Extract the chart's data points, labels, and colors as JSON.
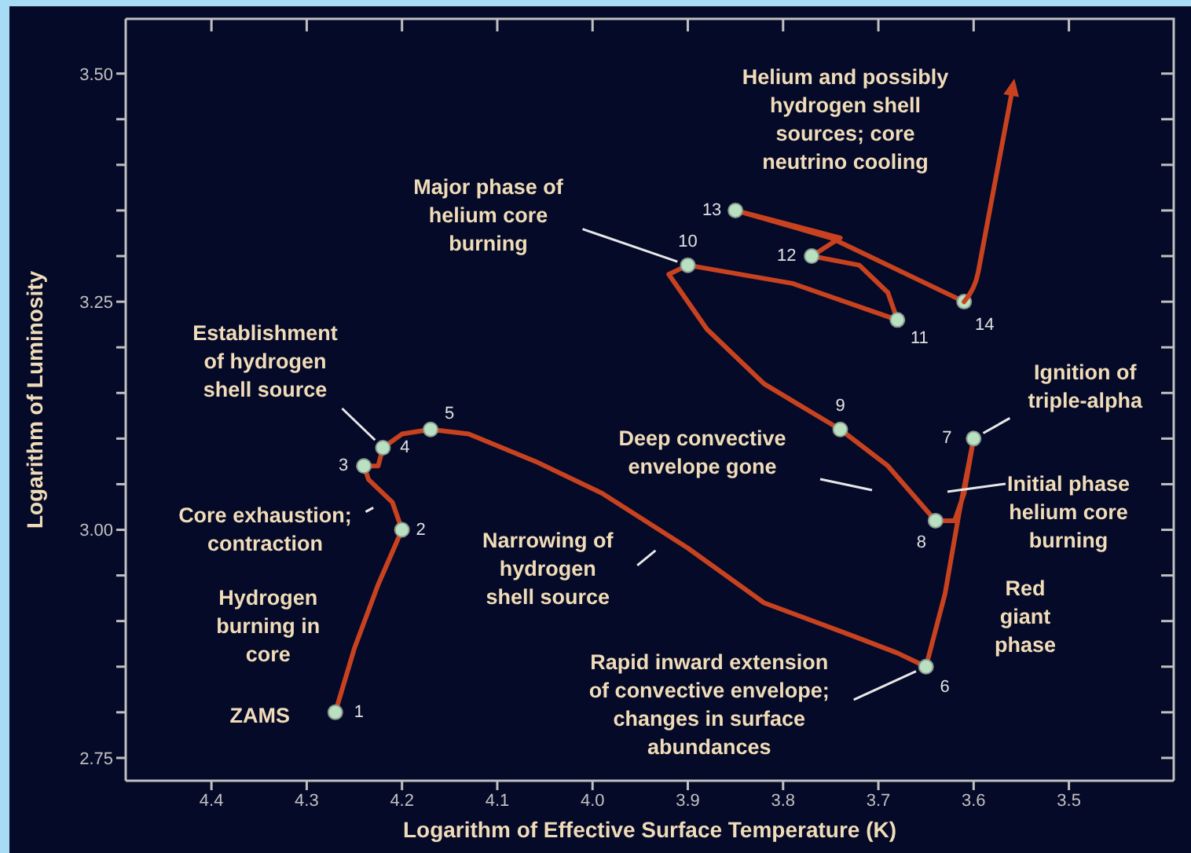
{
  "chart_data": {
    "type": "line",
    "xlabel": "Logarithm of Effective Surface Temperature (K)",
    "ylabel": "Logarithm of Luminosity",
    "xlim": [
      4.49,
      3.39
    ],
    "ylim": [
      2.725,
      3.56
    ],
    "xticks": [
      4.4,
      4.3,
      4.2,
      4.1,
      {
        "value": 4,
        "label": "4.0"
      },
      3.9,
      3.8,
      3.7,
      3.6,
      3.5
    ],
    "yticks": [
      {
        "value": 2.75,
        "label": "2.75"
      },
      {
        "value": 2.8,
        "label": null
      },
      {
        "value": 2.85,
        "label": null
      },
      {
        "value": 2.9,
        "label": null
      },
      {
        "value": 2.95,
        "label": null
      },
      {
        "value": 3,
        "label": "3.00"
      },
      {
        "value": 3.05,
        "label": null
      },
      {
        "value": 3.1,
        "label": null
      },
      {
        "value": 3.15,
        "label": null
      },
      {
        "value": 3.2,
        "label": null
      },
      {
        "value": 3.25,
        "label": "3.25"
      },
      {
        "value": 3.3,
        "label": null
      },
      {
        "value": 3.35,
        "label": null
      },
      {
        "value": 3.4,
        "label": null
      },
      {
        "value": 3.45,
        "label": null
      },
      {
        "value": 3.5,
        "label": "3.50"
      }
    ],
    "series": [
      {
        "color": "#c8421f",
        "x": [
          4.27,
          4.25,
          4.225,
          4.2,
          4.21,
          4.235,
          4.24,
          4.225,
          4.22,
          4.2,
          4.17,
          4.13,
          4.06,
          3.99,
          3.9,
          3.82,
          3.73,
          3.68,
          3.65,
          3.63,
          3.615,
          3.6,
          3.61,
          3.62,
          3.64,
          3.69,
          3.74,
          3.82,
          3.88,
          3.92,
          3.9,
          3.79,
          3.68,
          3.69,
          3.72,
          3.77,
          3.74,
          3.85,
          3.75,
          3.61
        ],
        "values": [
          2.8,
          2.87,
          2.94,
          3.0,
          3.03,
          3.055,
          3.07,
          3.07,
          3.09,
          3.105,
          3.11,
          3.105,
          3.075,
          3.04,
          2.98,
          2.92,
          2.885,
          2.865,
          2.85,
          2.93,
          3.02,
          3.1,
          3.04,
          3.01,
          3.01,
          3.07,
          3.11,
          3.16,
          3.22,
          3.28,
          3.29,
          3.27,
          3.23,
          3.26,
          3.29,
          3.3,
          3.32,
          3.35,
          3.32,
          3.25
        ]
      },
      {
        "type": "scatter",
        "color": "#b9e0c0",
        "x": [
          4.27,
          4.2,
          4.24,
          4.22,
          4.17,
          3.65,
          3.6,
          3.64,
          3.74,
          3.9,
          3.68,
          3.77,
          3.85,
          3.61
        ],
        "values": [
          2.8,
          3.0,
          3.07,
          3.09,
          3.11,
          2.85,
          3.1,
          3.01,
          3.11,
          3.29,
          3.23,
          3.3,
          3.35,
          3.25
        ]
      }
    ],
    "annotations": [
      {
        "text": "ZAMS",
        "x": 4.27,
        "y": 2.8
      },
      {
        "text": "Hydrogen burning in core",
        "x": 4.24,
        "y": 2.9
      },
      {
        "text": "Core exhaustion; contraction",
        "x": 4.22,
        "y": 3.03
      },
      {
        "text": "Establishment of hydrogen shell source",
        "x": 4.22,
        "y": 3.09
      },
      {
        "text": "Major phase of helium core burning",
        "x": 3.9,
        "y": 3.29
      },
      "Helium and possibly hydrogen shell sources; core neutrino cooling",
      "Deep convective envelope gone",
      {
        "text": "Narrowing of hydrogen shell source",
        "x": 3.925,
        "y": 2.985
      },
      {
        "text": "Rapid inward extension of convective envelope; changes in surface abundances",
        "x": 3.65,
        "y": 2.85
      },
      {
        "text": "Ignition of triple-alpha",
        "x": 3.6,
        "y": 3.1
      },
      "Initial phase helium core burning",
      {
        "text": "Red giant phase",
        "x": 3.62,
        "y": 2.95
      },
      {
        "text": "1",
        "x": 4.27,
        "y": 2.8
      },
      {
        "text": "2",
        "x": 4.2,
        "y": 3.0
      },
      {
        "text": "3",
        "x": 4.24,
        "y": 3.07
      },
      {
        "text": "4",
        "x": 4.22,
        "y": 3.09
      },
      {
        "text": "5",
        "x": 4.17,
        "y": 3.11
      },
      {
        "text": "6",
        "x": 3.65,
        "y": 2.85
      },
      {
        "text": "7",
        "x": 3.6,
        "y": 3.1
      },
      {
        "text": "8",
        "x": 3.64,
        "y": 3.01
      },
      {
        "text": "9",
        "x": 3.74,
        "y": 3.11
      },
      {
        "text": "10",
        "x": 3.9,
        "y": 3.29
      },
      {
        "text": "11",
        "x": 3.68,
        "y": 3.23
      },
      {
        "text": "12",
        "x": 3.77,
        "y": 3.3
      },
      {
        "text": "13",
        "x": 3.85,
        "y": 3.35
      },
      {
        "text": "14",
        "x": 3.61,
        "y": 3.25
      }
    ]
  }
}
